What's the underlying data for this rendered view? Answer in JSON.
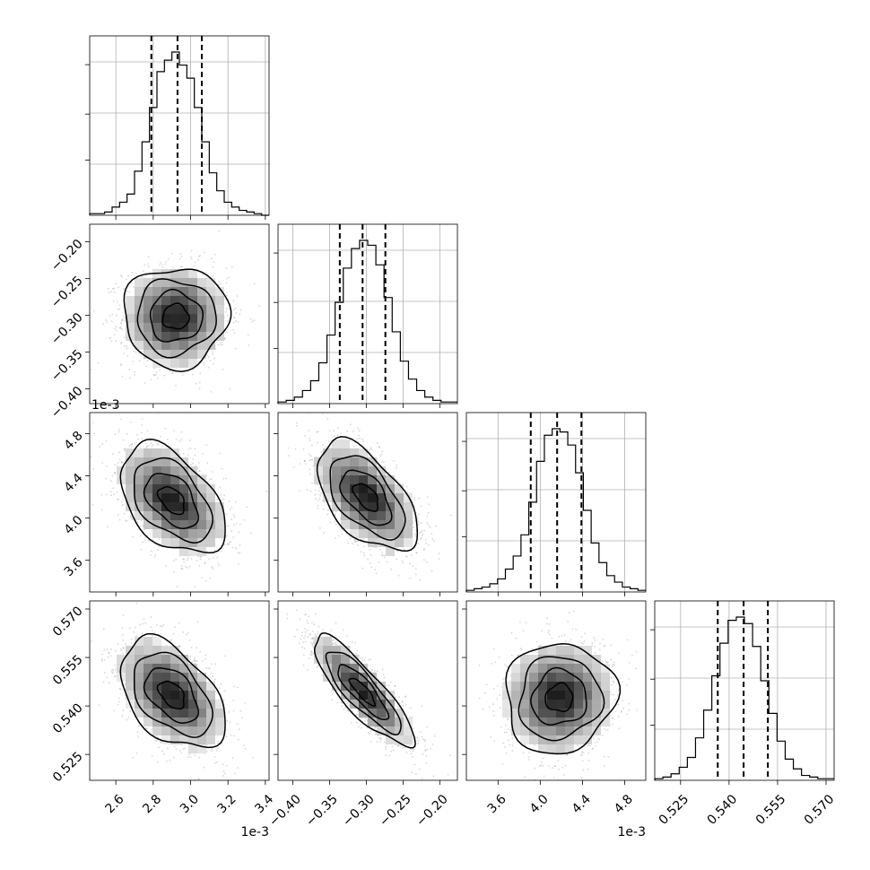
{
  "chart_data": {
    "type": "corner",
    "n_params": 4,
    "grid": true,
    "quantiles": [
      0.16,
      0.5,
      0.84
    ],
    "params": [
      {
        "index": 0,
        "range": [
          2.46,
          3.42
        ],
        "offset_text": "1e-3",
        "ticks": [
          2.6,
          2.8,
          3.0,
          3.2,
          3.4
        ],
        "tick_labels": [
          "2.6",
          "2.8",
          "3.0",
          "3.2",
          "3.4"
        ],
        "quantile_values": [
          2.79,
          2.93,
          3.06
        ]
      },
      {
        "index": 1,
        "range": [
          -0.42,
          -0.176
        ],
        "offset_text": "",
        "ticks": [
          -0.4,
          -0.35,
          -0.3,
          -0.25,
          -0.2
        ],
        "tick_labels": [
          "−0.40",
          "−0.35",
          "−0.30",
          "−0.25",
          "−0.20"
        ],
        "quantile_values": [
          -0.336,
          -0.305,
          -0.274
        ]
      },
      {
        "index": 2,
        "range": [
          3.3,
          5.0
        ],
        "offset_text": "1e-3",
        "ticks": [
          3.6,
          4.0,
          4.4,
          4.8
        ],
        "tick_labels": [
          "3.6",
          "4.0",
          "4.4",
          "4.8"
        ],
        "quantile_values": [
          3.91,
          4.16,
          4.39
        ]
      },
      {
        "index": 3,
        "range": [
          0.517,
          0.5725
        ],
        "offset_text": "",
        "ticks": [
          0.525,
          0.54,
          0.555,
          0.57
        ],
        "tick_labels": [
          "0.525",
          "0.540",
          "0.555",
          "0.570"
        ],
        "quantile_values": [
          0.5365,
          0.5445,
          0.552
        ]
      }
    ],
    "histograms": [
      {
        "param": 0,
        "bin_range": [
          2.46,
          3.42
        ],
        "counts": [
          1,
          1,
          2,
          5,
          8,
          13,
          27,
          45,
          66,
          88,
          95,
          100,
          92,
          84,
          66,
          45,
          26,
          15,
          8,
          5,
          3,
          2,
          1,
          0
        ]
      },
      {
        "param": 1,
        "bin_range": [
          -0.42,
          -0.176
        ],
        "counts": [
          1,
          2,
          4,
          8,
          14,
          25,
          42,
          62,
          83,
          95,
          100,
          97,
          85,
          65,
          44,
          26,
          15,
          8,
          4,
          2,
          1,
          1
        ]
      },
      {
        "param": 2,
        "bin_range": [
          3.3,
          5.0
        ],
        "counts": [
          1,
          2,
          3,
          5,
          8,
          14,
          22,
          35,
          55,
          80,
          96,
          100,
          98,
          90,
          73,
          50,
          30,
          18,
          10,
          6,
          3,
          2,
          1
        ]
      },
      {
        "param": 3,
        "bin_range": [
          0.517,
          0.5725
        ],
        "counts": [
          1,
          2,
          4,
          8,
          14,
          26,
          43,
          64,
          84,
          98,
          100,
          96,
          82,
          61,
          41,
          24,
          13,
          7,
          3,
          2,
          1,
          1
        ]
      }
    ],
    "pairs": [
      {
        "x_param": 0,
        "y_param": 1,
        "mean": [
          2.92,
          -0.302
        ],
        "sigma": [
          0.14,
          0.034
        ],
        "rho": 0.0
      },
      {
        "x_param": 0,
        "y_param": 2,
        "mean": [
          2.9,
          4.17
        ],
        "sigma": [
          0.14,
          0.26
        ],
        "rho": -0.45
      },
      {
        "x_param": 1,
        "y_param": 2,
        "mean": [
          -0.3,
          4.2
        ],
        "sigma": [
          0.034,
          0.26
        ],
        "rho": -0.55
      },
      {
        "x_param": 0,
        "y_param": 3,
        "mean": [
          2.9,
          0.5435
        ],
        "sigma": [
          0.14,
          0.0085
        ],
        "rho": -0.45
      },
      {
        "x_param": 1,
        "y_param": 3,
        "mean": [
          -0.305,
          0.5445
        ],
        "sigma": [
          0.034,
          0.0085
        ],
        "rho": -0.85
      },
      {
        "x_param": 2,
        "y_param": 3,
        "mean": [
          4.18,
          0.5425
        ],
        "sigma": [
          0.26,
          0.0085
        ],
        "rho": 0.05
      }
    ],
    "contour_levels_sigma": [
      0.5,
      1.0,
      1.5,
      2.0
    ]
  }
}
